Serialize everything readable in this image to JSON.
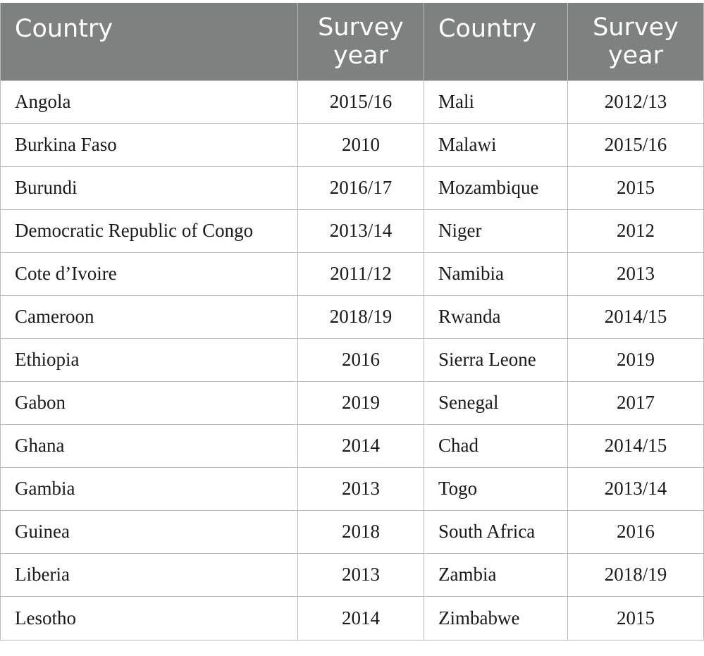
{
  "table": {
    "headers": [
      "Country",
      "Survey year",
      "Country",
      "Survey year"
    ],
    "rows": [
      [
        "Angola",
        "2015/16",
        "Mali",
        "2012/13"
      ],
      [
        "Burkina Faso",
        "2010",
        "Malawi",
        "2015/16"
      ],
      [
        "Burundi",
        "2016/17",
        "Mozambique",
        "2015"
      ],
      [
        "Democratic Republic of Congo",
        "2013/14",
        "Niger",
        "2012"
      ],
      [
        "Cote d’Ivoire",
        "2011/12",
        "Namibia",
        "2013"
      ],
      [
        "Cameroon",
        "2018/19",
        "Rwanda",
        "2014/15"
      ],
      [
        "Ethiopia",
        "2016",
        "Sierra Leone",
        "2019"
      ],
      [
        "Gabon",
        "2019",
        "Senegal",
        "2017"
      ],
      [
        "Ghana",
        "2014",
        "Chad",
        "2014/15"
      ],
      [
        "Gambia",
        "2013",
        "Togo",
        "2013/14"
      ],
      [
        "Guinea",
        "2018",
        "South Africa",
        "2016"
      ],
      [
        "Liberia",
        "2013",
        "Zambia",
        "2018/19"
      ],
      [
        "Lesotho",
        "2014",
        "Zimbabwe",
        "2015"
      ]
    ]
  },
  "colors": {
    "header_background": "#7f8180",
    "header_text": "#ffffff",
    "grid_lines": "#b9bbba",
    "body_text": "#1a1a1a"
  }
}
